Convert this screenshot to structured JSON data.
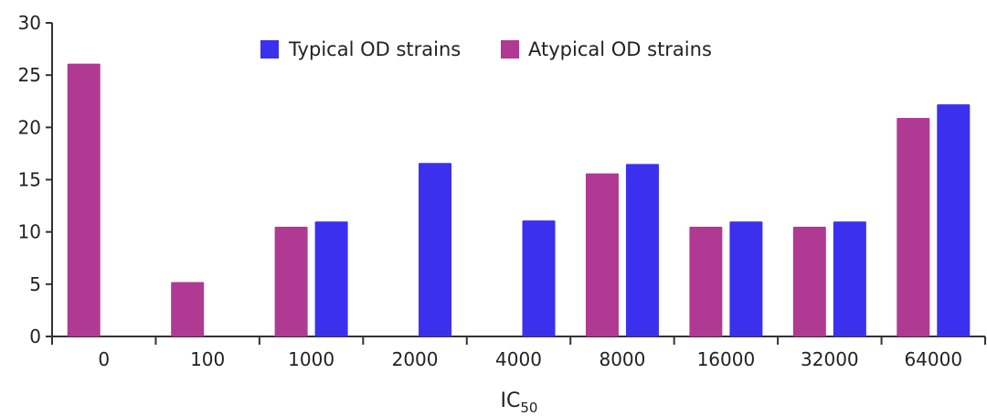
{
  "chart_data": {
    "type": "bar",
    "categories": [
      "0",
      "100",
      "1000",
      "2000",
      "4000",
      "8000",
      "16000",
      "32000",
      "64000"
    ],
    "series": [
      {
        "name": "Atypical OD strains",
        "color": "#b03a93",
        "values": [
          26.1,
          5.2,
          10.5,
          null,
          null,
          15.6,
          10.5,
          10.5,
          20.9
        ]
      },
      {
        "name": "Typical OD strains",
        "color": "#3b30ee",
        "values": [
          null,
          null,
          11.0,
          16.6,
          11.1,
          16.5,
          11.0,
          11.0,
          22.2
        ]
      }
    ],
    "legend": {
      "placement": "top-center",
      "order": [
        "Typical OD strains",
        "Atypical OD strains"
      ]
    },
    "xlabel": {
      "main": "IC",
      "subscript": "50"
    },
    "ylabel": "",
    "title": "",
    "ylim": [
      0,
      30
    ],
    "yticks": [
      0,
      5,
      10,
      15,
      20,
      25,
      30
    ],
    "grid": false
  }
}
